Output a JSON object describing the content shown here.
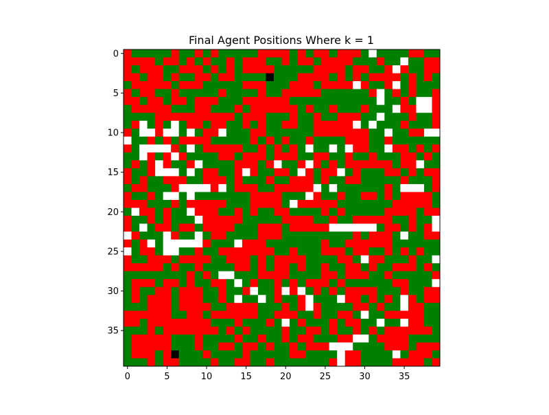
{
  "chart_data": {
    "type": "heatmap",
    "title": "Final Agent Positions Where k = 1",
    "xlabel": "",
    "ylabel": "",
    "grid_size": [
      40,
      40
    ],
    "xlim": [
      -0.5,
      39.5
    ],
    "ylim": [
      39.5,
      -0.5
    ],
    "xticks": [
      0,
      5,
      10,
      15,
      20,
      25,
      30,
      35
    ],
    "yticks": [
      0,
      5,
      10,
      15,
      20,
      25,
      30,
      35
    ],
    "legend": "none",
    "grid": false,
    "colors": {
      "0": "#ffffff",
      "1": "#ff0000",
      "2": "#008000",
      "3": "#000000"
    },
    "rows": [
      "1222221221212222211112121121112022221122",
      "1111211212122121112212112111122212202211",
      "1211122111212121111222221111211221012211",
      "1121121221121122223222111121212111121212",
      "2111112111222221112221112111101221021222",
      "1211221222221222212211111222222102121221",
      "1121121121112221111112222222222202212001",
      "2111112221122212111111212212221222011001",
      "2222111111111121112221221221112202221221",
      "2102120211211221212211221111102022212221",
      "1200100202110222112222221111111220221100",
      "0221212111122222121212212222111221222222",
      "1200001202111112212121202202011220112121",
      "2201210122221121112111221122122122211212",
      "2121012210222211121022101212111111211022",
      "1221000202112210122112012110212221121211",
      "1212211122111212221221112122112222212221",
      "2112221000010211122111110202222221200021",
      "1221200202222222111122201221221121211112",
      "1112221211111222111120111112222222111112",
      "2011212201112212122112222121222221111211",
      "1221212220111112222211112212211111221220",
      "1202112112111122211121111100000021121210",
      "0122201220211222211122222222212111202211",
      "1210200000122201112222222122111111222222",
      "0211200221221111111221222111211221212122",
      "1221112111122111212111122221120112221220",
      "1111121221222211212112122122112122111212",
      "2222222212120022211112222112111221222221",
      "2111211212211202122121211121222222112220",
      "2122112111221221022101021212111122212211",
      "2121112111221202202122102220112121201211",
      "2221112111122111122212101222211212201122",
      "1111112211211111122111221221120221111122",
      "1121111111122212221202122212112202201122",
      "2221211111112121222212211212212121111112",
      "2111112221222212212212112221100211112222",
      "2111112221221121121221211100022221112111",
      "2111213222122221222221122220112222021112",
      "2221211222212211221222222210112222111121"
    ]
  }
}
